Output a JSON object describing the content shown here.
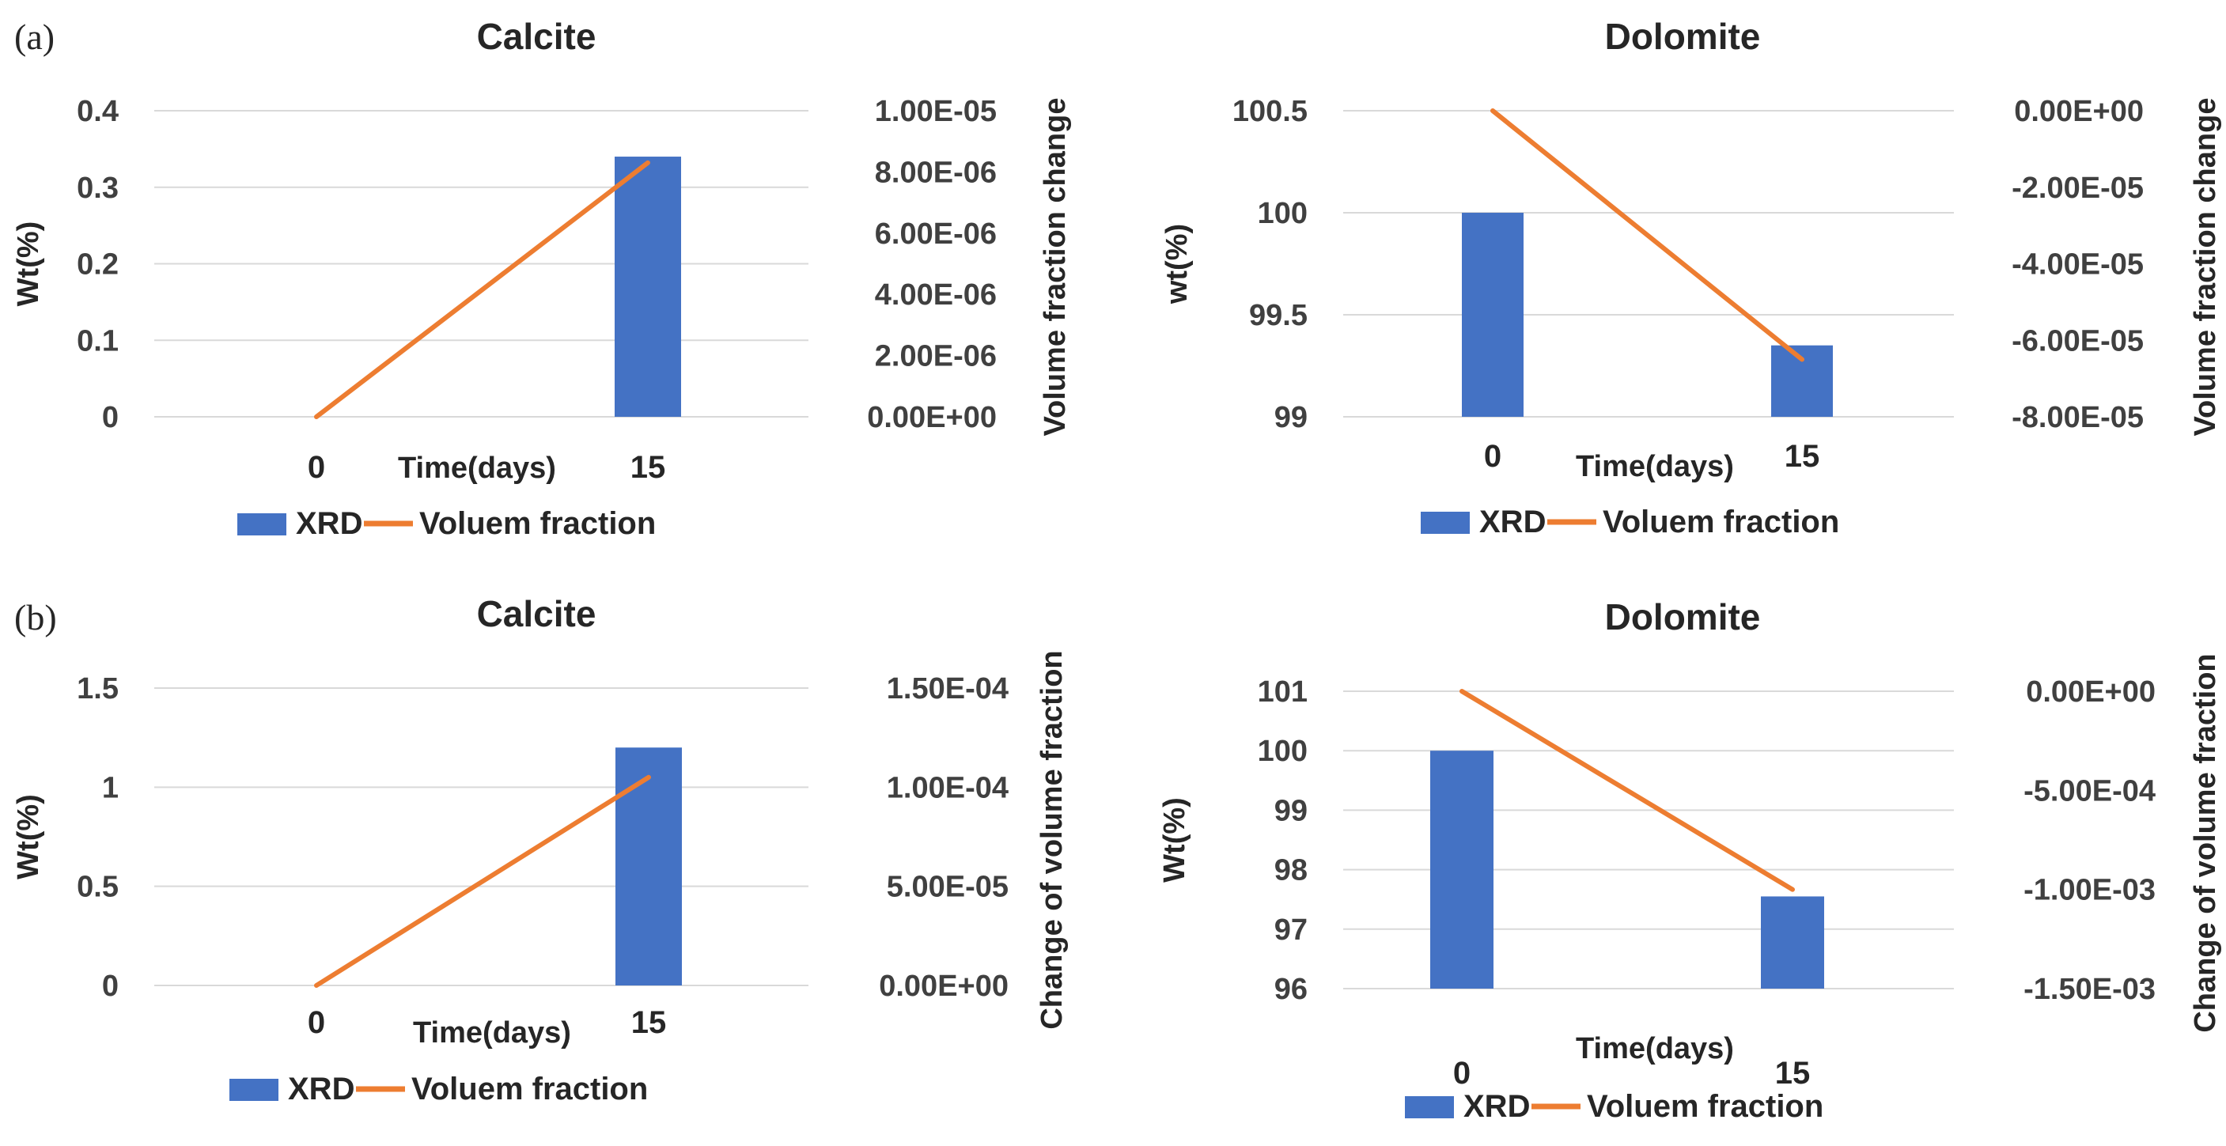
{
  "panel_labels": [
    "(a)",
    "(b)"
  ],
  "colors": {
    "bar": "#4472c4",
    "line": "#ed7d31"
  },
  "chart_data": [
    {
      "type": "bar+line",
      "title": "Calcite",
      "categories": [
        "0",
        "15"
      ],
      "xlabel": "Time(days)",
      "ylabel": "Wt(%)",
      "y2label": "Volume fraction change",
      "ylim": [
        0,
        0.4
      ],
      "yticks": [
        "0",
        "0.1",
        "0.2",
        "0.3",
        "0.4"
      ],
      "y2lim": [
        0,
        1e-05
      ],
      "y2ticks": [
        "0.00E+00",
        "2.00E-06",
        "4.00E-06",
        "6.00E-06",
        "8.00E-06",
        "1.00E-05"
      ],
      "series": [
        {
          "name": "XRD",
          "type": "bar",
          "axis": "left",
          "values": [
            0,
            0.34
          ]
        },
        {
          "name": "Voluem fraction",
          "type": "line",
          "axis": "right",
          "values": [
            0,
            8.3e-06
          ]
        }
      ],
      "legend": [
        "XRD",
        "Voluem fraction"
      ]
    },
    {
      "type": "bar+line",
      "title": "Dolomite",
      "categories": [
        "0",
        "15"
      ],
      "xlabel": "Time(days)",
      "ylabel": "wt(%)",
      "y2label": "Volume fraction change",
      "ylim": [
        99,
        100.5
      ],
      "yticks": [
        "99",
        "99.5",
        "100",
        "100.5"
      ],
      "y2lim": [
        -8e-05,
        0
      ],
      "y2ticks": [
        "-8.00E-05",
        "-6.00E-05",
        "-4.00E-05",
        "-2.00E-05",
        "0.00E+00"
      ],
      "series": [
        {
          "name": "XRD",
          "type": "bar",
          "axis": "left",
          "values": [
            100,
            99.35
          ]
        },
        {
          "name": "Voluem fraction",
          "type": "line",
          "axis": "right",
          "values": [
            0,
            -6.5e-05
          ]
        }
      ],
      "legend": [
        "XRD",
        "Voluem fraction"
      ]
    },
    {
      "type": "bar+line",
      "title": "Calcite",
      "categories": [
        "0",
        "15"
      ],
      "xlabel": "Time(days)",
      "ylabel": "Wt(%)",
      "y2label": "Change of volume fraction",
      "ylim": [
        0,
        1.5
      ],
      "yticks": [
        "0",
        "0.5",
        "1",
        "1.5"
      ],
      "y2lim": [
        0,
        0.00015
      ],
      "y2ticks": [
        "0.00E+00",
        "5.00E-05",
        "1.00E-04",
        "1.50E-04"
      ],
      "series": [
        {
          "name": "XRD",
          "type": "bar",
          "axis": "left",
          "values": [
            0,
            1.2
          ]
        },
        {
          "name": "Voluem fraction",
          "type": "line",
          "axis": "right",
          "values": [
            0,
            0.000105
          ]
        }
      ],
      "legend": [
        "XRD",
        "Voluem fraction"
      ]
    },
    {
      "type": "bar+line",
      "title": "Dolomite",
      "categories": [
        "0",
        "15"
      ],
      "xlabel": "Time(days)",
      "ylabel": "Wt(%)",
      "y2label": "Change of volume fraction",
      "ylim": [
        96,
        101
      ],
      "yticks": [
        "96",
        "97",
        "98",
        "99",
        "100",
        "101"
      ],
      "y2lim": [
        -0.0015,
        0
      ],
      "y2ticks": [
        "-1.50E-03",
        "-1.00E-03",
        "-5.00E-04",
        "0.00E+00"
      ],
      "series": [
        {
          "name": "XRD",
          "type": "bar",
          "axis": "left",
          "values": [
            100,
            97.55
          ]
        },
        {
          "name": "Voluem fraction",
          "type": "line",
          "axis": "right",
          "values": [
            0,
            -0.001
          ]
        }
      ],
      "legend": [
        "XRD",
        "Voluem fraction"
      ]
    }
  ]
}
